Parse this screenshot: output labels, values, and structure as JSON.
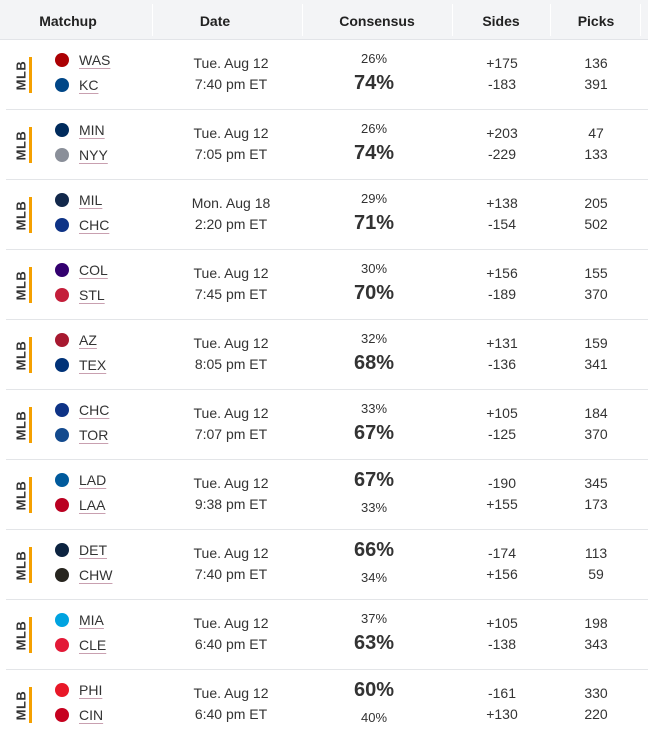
{
  "columns": {
    "matchup": "Matchup",
    "date": "Date",
    "consensus": "Consensus",
    "sides": "Sides",
    "picks": "Picks"
  },
  "rows": [
    {
      "league": "MLB",
      "team1": {
        "abbr": "WAS",
        "icon": "nationals-logo-icon",
        "color": "#ab0003"
      },
      "team2": {
        "abbr": "KC",
        "icon": "royals-logo-icon",
        "color": "#004687"
      },
      "date": "Tue. Aug 12",
      "time": "7:40 pm ET",
      "pct1": "26%",
      "pct2": "74%",
      "fav": 2,
      "side1": "+175",
      "side2": "-183",
      "picks1": "136",
      "picks2": "391"
    },
    {
      "league": "MLB",
      "team1": {
        "abbr": "MIN",
        "icon": "twins-logo-icon",
        "color": "#002b5c"
      },
      "team2": {
        "abbr": "NYY",
        "icon": "yankees-logo-icon",
        "color": "#8a8f99"
      },
      "date": "Tue. Aug 12",
      "time": "7:05 pm ET",
      "pct1": "26%",
      "pct2": "74%",
      "fav": 2,
      "side1": "+203",
      "side2": "-229",
      "picks1": "47",
      "picks2": "133"
    },
    {
      "league": "MLB",
      "team1": {
        "abbr": "MIL",
        "icon": "brewers-logo-icon",
        "color": "#12284b"
      },
      "team2": {
        "abbr": "CHC",
        "icon": "cubs-logo-icon",
        "color": "#0e3386"
      },
      "date": "Mon. Aug 18",
      "time": "2:20 pm ET",
      "pct1": "29%",
      "pct2": "71%",
      "fav": 2,
      "side1": "+138",
      "side2": "-154",
      "picks1": "205",
      "picks2": "502"
    },
    {
      "league": "MLB",
      "team1": {
        "abbr": "COL",
        "icon": "rockies-logo-icon",
        "color": "#33006f"
      },
      "team2": {
        "abbr": "STL",
        "icon": "cardinals-logo-icon",
        "color": "#c41e3a"
      },
      "date": "Tue. Aug 12",
      "time": "7:45 pm ET",
      "pct1": "30%",
      "pct2": "70%",
      "fav": 2,
      "side1": "+156",
      "side2": "-189",
      "picks1": "155",
      "picks2": "370"
    },
    {
      "league": "MLB",
      "team1": {
        "abbr": "AZ",
        "icon": "diamondbacks-logo-icon",
        "color": "#a71930"
      },
      "team2": {
        "abbr": "TEX",
        "icon": "rangers-logo-icon",
        "color": "#003278"
      },
      "date": "Tue. Aug 12",
      "time": "8:05 pm ET",
      "pct1": "32%",
      "pct2": "68%",
      "fav": 2,
      "side1": "+131",
      "side2": "-136",
      "picks1": "159",
      "picks2": "341"
    },
    {
      "league": "MLB",
      "team1": {
        "abbr": "CHC",
        "icon": "cubs-logo-icon",
        "color": "#0e3386"
      },
      "team2": {
        "abbr": "TOR",
        "icon": "blue-jays-logo-icon",
        "color": "#134a8e"
      },
      "date": "Tue. Aug 12",
      "time": "7:07 pm ET",
      "pct1": "33%",
      "pct2": "67%",
      "fav": 2,
      "side1": "+105",
      "side2": "-125",
      "picks1": "184",
      "picks2": "370"
    },
    {
      "league": "MLB",
      "team1": {
        "abbr": "LAD",
        "icon": "dodgers-logo-icon",
        "color": "#005a9c"
      },
      "team2": {
        "abbr": "LAA",
        "icon": "angels-logo-icon",
        "color": "#ba0021"
      },
      "date": "Tue. Aug 12",
      "time": "9:38 pm ET",
      "pct1": "67%",
      "pct2": "33%",
      "fav": 1,
      "side1": "-190",
      "side2": "+155",
      "picks1": "345",
      "picks2": "173"
    },
    {
      "league": "MLB",
      "team1": {
        "abbr": "DET",
        "icon": "tigers-logo-icon",
        "color": "#0c2340"
      },
      "team2": {
        "abbr": "CHW",
        "icon": "white-sox-logo-icon",
        "color": "#27251f"
      },
      "date": "Tue. Aug 12",
      "time": "7:40 pm ET",
      "pct1": "66%",
      "pct2": "34%",
      "fav": 1,
      "side1": "-174",
      "side2": "+156",
      "picks1": "113",
      "picks2": "59"
    },
    {
      "league": "MLB",
      "team1": {
        "abbr": "MIA",
        "icon": "marlins-logo-icon",
        "color": "#00a3e0"
      },
      "team2": {
        "abbr": "CLE",
        "icon": "guardians-logo-icon",
        "color": "#e31937"
      },
      "date": "Tue. Aug 12",
      "time": "6:40 pm ET",
      "pct1": "37%",
      "pct2": "63%",
      "fav": 2,
      "side1": "+105",
      "side2": "-138",
      "picks1": "198",
      "picks2": "343"
    },
    {
      "league": "MLB",
      "team1": {
        "abbr": "PHI",
        "icon": "phillies-logo-icon",
        "color": "#e81828"
      },
      "team2": {
        "abbr": "CIN",
        "icon": "reds-logo-icon",
        "color": "#c6011f"
      },
      "date": "Tue. Aug 12",
      "time": "6:40 pm ET",
      "pct1": "60%",
      "pct2": "40%",
      "fav": 1,
      "side1": "-161",
      "side2": "+130",
      "picks1": "330",
      "picks2": "220"
    }
  ]
}
